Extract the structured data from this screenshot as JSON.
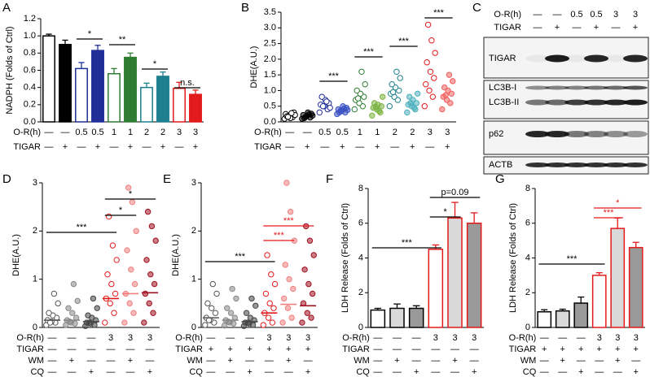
{
  "chart_data": [
    {
      "type": "bar",
      "label": "A",
      "ylabel": "NADPH (Folds of Ctrl)",
      "ylim": [
        0,
        1.2
      ],
      "yticks": [
        {
          "value": 0,
          "label": "0.0"
        },
        {
          "value": 0.2,
          "label": "0.2"
        },
        {
          "value": 0.4,
          "label": "0.4"
        },
        {
          "value": 0.6,
          "label": "0.6"
        },
        {
          "value": 0.8,
          "label": "0.8"
        },
        {
          "value": 1,
          "label": "1.0"
        },
        {
          "value": 1.2,
          "label": "1.2"
        }
      ],
      "values": [
        1.0,
        0.9,
        0.62,
        0.83,
        0.56,
        0.75,
        0.4,
        0.53,
        0.39,
        0.32
      ],
      "errors": [
        0.02,
        0.05,
        0.07,
        0.06,
        0.06,
        0.05,
        0.05,
        0.05,
        0.07,
        0.05
      ],
      "colors": [
        "#ffffff",
        "#000000",
        "#ffffff",
        "#1f2e99",
        "#ffffff",
        "#2e7d32",
        "#ffffff",
        "#1e7f8f",
        "#ffffff",
        "#e31a1c"
      ],
      "edgecolors": [
        "#000000",
        "#000000",
        "#1f2e99",
        "#1f2e99",
        "#2e7d32",
        "#2e7d32",
        "#1e7f8f",
        "#1e7f8f",
        "#e31a1c",
        "#e31a1c"
      ],
      "conditions": [
        {
          "name": "O-R(h)",
          "values": [
            "—",
            "—",
            "0.5",
            "0.5",
            "1",
            "1",
            "2",
            "2",
            "3",
            "3"
          ]
        },
        {
          "name": "TIGAR",
          "values": [
            "—",
            "+",
            "—",
            "+",
            "—",
            "+",
            "—",
            "+",
            "—",
            "+"
          ]
        }
      ],
      "annotations": [
        {
          "text": "*",
          "color": "#000000"
        },
        {
          "text": "**",
          "color": "#000000"
        },
        {
          "text": "*",
          "color": "#000000"
        },
        {
          "text": "n.s.",
          "color": "#000000"
        }
      ]
    },
    {
      "type": "dot",
      "label": "B",
      "ylabel": "DHE(A.U.)",
      "ylim": [
        0,
        3.5
      ],
      "yticks": [
        {
          "value": 0,
          "label": "0.0"
        },
        {
          "value": 0.5,
          "label": "0.5"
        },
        {
          "value": 1,
          "label": "1.0"
        },
        {
          "value": 1.5,
          "label": "1.5"
        },
        {
          "value": 2,
          "label": "2.0"
        },
        {
          "value": 2.5,
          "label": "2.5"
        },
        {
          "value": 3,
          "label": "3.0"
        },
        {
          "value": 3.5,
          "label": "3.5"
        }
      ],
      "series": [
        {
          "color": "#000000",
          "open": true,
          "values": [
            0.1,
            0.15,
            0.2,
            0.25,
            0.3,
            0.12,
            0.18,
            0.22,
            0.28,
            0.16
          ]
        },
        {
          "color": "#000000",
          "open": false,
          "values": [
            0.1,
            0.14,
            0.18,
            0.22,
            0.26,
            0.3,
            0.12,
            0.2,
            0.24,
            0.16
          ]
        },
        {
          "color": "#1f2e99",
          "open": true,
          "values": [
            0.3,
            0.4,
            0.5,
            0.55,
            0.6,
            0.7,
            0.8,
            0.45,
            0.65,
            0.5
          ]
        },
        {
          "color": "#3b52c4",
          "open": false,
          "values": [
            0.25,
            0.3,
            0.35,
            0.4,
            0.45,
            0.5,
            0.3,
            0.38,
            0.42,
            0.35
          ]
        },
        {
          "color": "#2e7d32",
          "open": true,
          "values": [
            0.4,
            0.5,
            0.6,
            0.7,
            0.8,
            0.9,
            1.0,
            1.2,
            1.6,
            0.75
          ]
        },
        {
          "color": "#7cb342",
          "open": false,
          "values": [
            0.2,
            0.3,
            0.4,
            0.45,
            0.5,
            0.55,
            0.6,
            0.8,
            0.35,
            0.48
          ]
        },
        {
          "color": "#1e7f8f",
          "open": true,
          "values": [
            0.5,
            0.7,
            0.8,
            0.9,
            1.0,
            1.1,
            1.2,
            1.4,
            1.6,
            0.95
          ]
        },
        {
          "color": "#4fb0bd",
          "open": false,
          "values": [
            0.3,
            0.4,
            0.5,
            0.55,
            0.6,
            0.7,
            0.8,
            0.9,
            0.45,
            0.6
          ]
        },
        {
          "color": "#e31a1c",
          "open": true,
          "values": [
            0.5,
            0.8,
            1.0,
            1.2,
            1.4,
            1.6,
            1.9,
            2.2,
            2.6,
            3.1
          ]
        },
        {
          "color": "#f0605f",
          "open": false,
          "values": [
            0.4,
            0.6,
            0.7,
            0.8,
            0.9,
            1.0,
            1.1,
            1.3,
            1.5,
            0.85
          ]
        }
      ],
      "conditions": [
        {
          "name": "O-R(h)",
          "values": [
            "—",
            "—",
            "0.5",
            "0.5",
            "1",
            "1",
            "2",
            "2",
            "3",
            "3"
          ]
        },
        {
          "name": "TIGAR",
          "values": [
            "—",
            "+",
            "—",
            "+",
            "—",
            "+",
            "—",
            "+",
            "—",
            "+"
          ]
        }
      ],
      "annotations": [
        {
          "text": "***",
          "color": "#000000"
        },
        {
          "text": "***",
          "color": "#000000"
        },
        {
          "text": "***",
          "color": "#000000"
        },
        {
          "text": "***",
          "color": "#000000"
        }
      ]
    },
    {
      "type": "dot",
      "label": "D",
      "ylabel": "DHE(A.U.)",
      "ylim": [
        0,
        3
      ],
      "yticks": [
        0,
        1,
        2,
        3
      ],
      "series": [
        {
          "color": "#555555",
          "open": true,
          "values": [
            0.05,
            0.1,
            0.12,
            0.15,
            0.2,
            0.25,
            0.3,
            0.5,
            0.7,
            0.1
          ],
          "mean": 0.15
        },
        {
          "color": "#888888",
          "open": false,
          "values": [
            0.05,
            0.08,
            0.1,
            0.15,
            0.2,
            0.3,
            0.4,
            0.55,
            0.9,
            0.12
          ],
          "mean": 0.15
        },
        {
          "color": "#444444",
          "open": false,
          "values": [
            0.03,
            0.05,
            0.08,
            0.1,
            0.15,
            0.2,
            0.25,
            0.4,
            0.6,
            0.1
          ],
          "mean": 0.12
        },
        {
          "color": "#e31a1c",
          "open": true,
          "values": [
            0.1,
            0.3,
            0.5,
            0.6,
            0.7,
            0.9,
            1.1,
            1.4,
            1.7,
            2.3
          ],
          "mean": 0.6
        },
        {
          "color": "#f08080",
          "open": false,
          "values": [
            0.1,
            0.3,
            0.5,
            0.7,
            0.9,
            1.2,
            1.6,
            2.0,
            2.6,
            2.9
          ],
          "mean": 0.7
        },
        {
          "color": "#a01020",
          "open": false,
          "values": [
            0.1,
            0.3,
            0.5,
            0.7,
            0.9,
            1.1,
            1.4,
            1.8,
            2.1,
            2.4
          ],
          "mean": 0.72
        }
      ],
      "conditions": [
        {
          "name": "O-R(h)",
          "values": [
            "—",
            "—",
            "—",
            "3",
            "3",
            "3"
          ]
        },
        {
          "name": "TIGAR",
          "values": [
            "—",
            "—",
            "—",
            "—",
            "—",
            "—"
          ]
        },
        {
          "name": "WM",
          "values": [
            "—",
            "+",
            "—",
            "—",
            "+",
            "—"
          ]
        },
        {
          "name": "CQ",
          "values": [
            "—",
            "—",
            "+",
            "—",
            "—",
            "+"
          ]
        }
      ],
      "annotations": [
        {
          "text": "***",
          "color": "#000000"
        },
        {
          "text": "*",
          "color": "#000000"
        },
        {
          "text": "*",
          "color": "#000000"
        }
      ]
    },
    {
      "type": "dot",
      "label": "E",
      "ylabel": "DHE(A.U.)",
      "ylim": [
        0,
        3
      ],
      "yticks": [
        0,
        1,
        2,
        3
      ],
      "series": [
        {
          "color": "#555555",
          "open": true,
          "values": [
            0.05,
            0.1,
            0.15,
            0.2,
            0.3,
            0.4,
            0.5,
            0.7,
            0.9,
            0.15
          ],
          "mean": 0.2
        },
        {
          "color": "#888888",
          "open": false,
          "values": [
            0.04,
            0.08,
            0.1,
            0.15,
            0.2,
            0.3,
            0.4,
            0.6,
            0.8,
            0.12
          ],
          "mean": 0.15
        },
        {
          "color": "#444444",
          "open": false,
          "values": [
            0.03,
            0.05,
            0.08,
            0.1,
            0.15,
            0.2,
            0.3,
            0.45,
            0.6,
            0.1
          ],
          "mean": 0.12
        },
        {
          "color": "#e31a1c",
          "open": true,
          "values": [
            0.05,
            0.1,
            0.2,
            0.3,
            0.4,
            0.5,
            0.7,
            0.9,
            1.1,
            1.5
          ],
          "mean": 0.3
        },
        {
          "color": "#f08080",
          "open": false,
          "values": [
            0.1,
            0.2,
            0.4,
            0.6,
            0.8,
            1.0,
            1.3,
            1.8,
            2.4,
            3.0
          ],
          "mean": 0.48
        },
        {
          "color": "#a01020",
          "open": false,
          "values": [
            0.1,
            0.2,
            0.3,
            0.5,
            0.7,
            0.9,
            1.2,
            1.5,
            1.8,
            2.1
          ],
          "mean": 0.45
        }
      ],
      "conditions": [
        {
          "name": "O-R(h)",
          "values": [
            "—",
            "—",
            "—",
            "3",
            "3",
            "3"
          ]
        },
        {
          "name": "TIGAR",
          "values": [
            "+",
            "+",
            "+",
            "+",
            "+",
            "+"
          ]
        },
        {
          "name": "WM",
          "values": [
            "—",
            "+",
            "—",
            "—",
            "+",
            "—"
          ]
        },
        {
          "name": "CQ",
          "values": [
            "—",
            "—",
            "+",
            "—",
            "—",
            "+"
          ]
        }
      ],
      "annotations": [
        {
          "text": "***",
          "color": "#000000"
        },
        {
          "text": "***",
          "color": "#e31a1c"
        },
        {
          "text": "***",
          "color": "#e31a1c"
        }
      ]
    },
    {
      "type": "bar",
      "label": "F",
      "ylabel": "LDH Release (Folds of Ctrl)",
      "ylim": [
        0,
        8
      ],
      "yticks": [
        0,
        2,
        4,
        6,
        8
      ],
      "values": [
        1.0,
        1.1,
        1.1,
        4.5,
        6.3,
        6.0
      ],
      "errors": [
        0.1,
        0.25,
        0.15,
        0.25,
        0.9,
        0.6
      ],
      "colors": [
        "#ffffff",
        "#d9d9d9",
        "#999999",
        "#ffffff",
        "#d9d9d9",
        "#999999"
      ],
      "edgecolors": [
        "#000000",
        "#000000",
        "#000000",
        "#e31a1c",
        "#e31a1c",
        "#e31a1c"
      ],
      "conditions": [
        {
          "name": "O-R(h)",
          "values": [
            "—",
            "—",
            "—",
            "3",
            "3",
            "3"
          ]
        },
        {
          "name": "TIGAR",
          "values": [
            "—",
            "—",
            "—",
            "—",
            "—",
            "—"
          ]
        },
        {
          "name": "WM",
          "values": [
            "—",
            "+",
            "—",
            "—",
            "+",
            "—"
          ]
        },
        {
          "name": "CQ",
          "values": [
            "—",
            "—",
            "+",
            "—",
            "—",
            "+"
          ]
        }
      ],
      "annotations": [
        {
          "text": "***",
          "color": "#000000"
        },
        {
          "text": "*",
          "color": "#000000"
        },
        {
          "text": "p=0.09",
          "color": "#000000"
        }
      ]
    },
    {
      "type": "bar",
      "label": "G",
      "ylabel": "LDH Release (Folds of Ctrl)",
      "ylim": [
        0,
        8
      ],
      "yticks": [
        0,
        2,
        4,
        6,
        8
      ],
      "values": [
        0.9,
        0.95,
        1.4,
        3.0,
        5.7,
        4.6
      ],
      "errors": [
        0.12,
        0.1,
        0.35,
        0.15,
        0.6,
        0.3
      ],
      "colors": [
        "#ffffff",
        "#d9d9d9",
        "#999999",
        "#ffffff",
        "#d9d9d9",
        "#999999"
      ],
      "edgecolors": [
        "#000000",
        "#000000",
        "#000000",
        "#e31a1c",
        "#e31a1c",
        "#e31a1c"
      ],
      "conditions": [
        {
          "name": "O-R(h)",
          "values": [
            "—",
            "—",
            "—",
            "3",
            "3",
            "3"
          ]
        },
        {
          "name": "TIGAR",
          "values": [
            "+",
            "+",
            "+",
            "+",
            "+",
            "+"
          ]
        },
        {
          "name": "WM",
          "values": [
            "—",
            "+",
            "—",
            "—",
            "+",
            "—"
          ]
        },
        {
          "name": "CQ",
          "values": [
            "—",
            "—",
            "+",
            "—",
            "—",
            "+"
          ]
        }
      ],
      "annotations": [
        {
          "text": "***",
          "color": "#000000"
        },
        {
          "text": "***",
          "color": "#e31a1c"
        },
        {
          "text": "*",
          "color": "#e31a1c"
        }
      ]
    }
  ],
  "blot": {
    "label": "C",
    "conditions": [
      {
        "name": "O-R(h)",
        "values": [
          "—",
          "—",
          "0.5",
          "0.5",
          "3",
          "3"
        ]
      },
      {
        "name": "TIGAR",
        "values": [
          "—",
          "+",
          "—",
          "+",
          "—",
          "+"
        ]
      }
    ],
    "bands": [
      "TIGAR",
      "LC3B-I",
      "LC3B-II",
      "p62",
      "ACTB"
    ]
  }
}
